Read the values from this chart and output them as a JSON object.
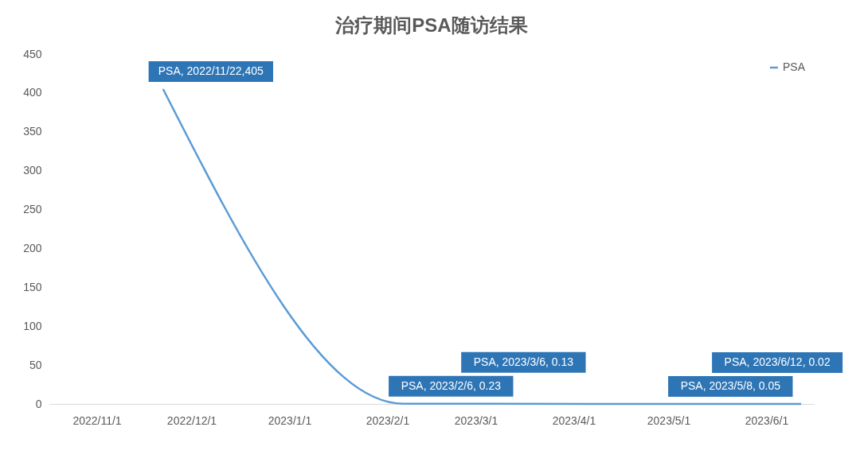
{
  "chart_data": {
    "type": "line",
    "title": "治疗期间PSA随访结果",
    "x": [
      "2022-11-22",
      "2023-02-06",
      "2023-03-06",
      "2023-05-08",
      "2023-06-12"
    ],
    "series": [
      {
        "name": "PSA",
        "color": "#5b9bd5",
        "values": [
          405,
          0.23,
          0.13,
          0.05,
          0.02
        ],
        "value_labels": [
          "PSA, 2022/11/22,405",
          "PSA, 2023/2/6, 0.23",
          "PSA, 2023/3/6, 0.13",
          "PSA, 2023/5/8, 0.05",
          "PSA, 2023/6/12, 0.02"
        ]
      }
    ],
    "xlim": [
      "2022-10-17",
      "2023-06-16"
    ],
    "xticks": [
      {
        "value": "2022-11-01",
        "label": "2022/11/1"
      },
      {
        "value": "2022-12-01",
        "label": "2022/12/1"
      },
      {
        "value": "2023-01-01",
        "label": "2023/1/1"
      },
      {
        "value": "2023-02-01",
        "label": "2023/2/1"
      },
      {
        "value": "2023-03-01",
        "label": "2023/3/1"
      },
      {
        "value": "2023-04-01",
        "label": "2023/4/1"
      },
      {
        "value": "2023-05-01",
        "label": "2023/5/1"
      },
      {
        "value": "2023-06-01",
        "label": "2023/6/1"
      }
    ],
    "ylim": [
      0,
      450
    ],
    "yticks": [
      0,
      50,
      100,
      150,
      200,
      250,
      300,
      350,
      400,
      450
    ],
    "legend": "top right",
    "grid": false
  }
}
